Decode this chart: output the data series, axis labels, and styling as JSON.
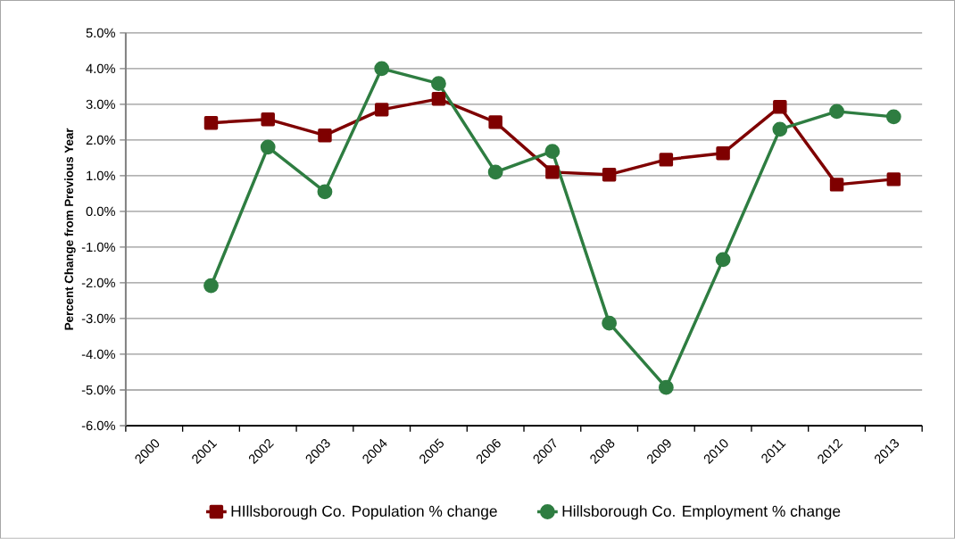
{
  "chart_data": {
    "type": "line",
    "ylabel": "Percent Change from Previous Year",
    "categories": [
      "2000",
      "2001",
      "2002",
      "2003",
      "2004",
      "2005",
      "2006",
      "2007",
      "2008",
      "2009",
      "2010",
      "2011",
      "2012",
      "2013"
    ],
    "series": [
      {
        "name": "HIllsborough Co. Population % change",
        "color": "#7f0000",
        "marker": "square",
        "values": [
          null,
          2.48,
          2.58,
          2.13,
          2.85,
          3.15,
          2.5,
          1.1,
          1.03,
          1.45,
          1.63,
          2.93,
          0.75,
          0.9
        ]
      },
      {
        "name": "Hillsborough Co. Employment % change",
        "color": "#2e7d41",
        "marker": "circle",
        "values": [
          null,
          -2.08,
          1.8,
          0.55,
          4.0,
          3.58,
          1.1,
          1.68,
          -3.13,
          -4.93,
          -1.35,
          2.3,
          2.8,
          2.65
        ]
      }
    ],
    "ylim": [
      -6,
      5
    ],
    "yticks": [
      {
        "value": -6,
        "label": "-6.0%"
      },
      {
        "value": -5,
        "label": "-5.0%"
      },
      {
        "value": -4,
        "label": "-4.0%"
      },
      {
        "value": -3,
        "label": "-3.0%"
      },
      {
        "value": -2,
        "label": "-2.0%"
      },
      {
        "value": -1,
        "label": "-1.0%"
      },
      {
        "value": 0,
        "label": "0.0%"
      },
      {
        "value": 1,
        "label": "1.0%"
      },
      {
        "value": 2,
        "label": "2.0%"
      },
      {
        "value": 3,
        "label": "3.0%"
      },
      {
        "value": 4,
        "label": "4.0%"
      },
      {
        "value": 5,
        "label": "5.0%"
      }
    ],
    "grid": "y",
    "legend": "bottom",
    "line_style": "solid"
  }
}
